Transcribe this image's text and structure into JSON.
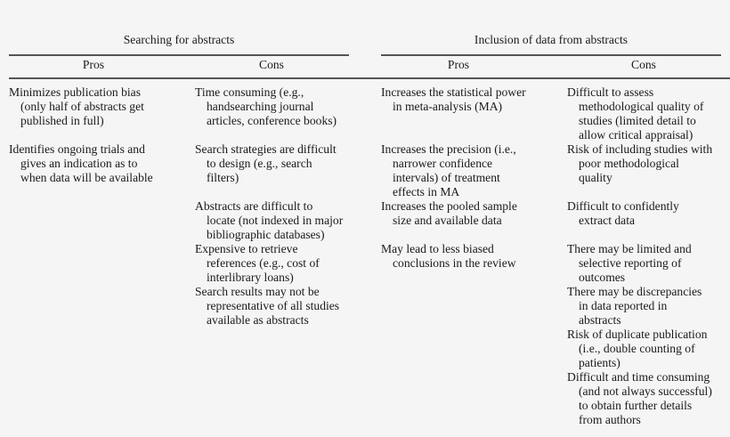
{
  "groups": [
    {
      "title": "Searching for abstracts",
      "columns": [
        {
          "label": "Pros",
          "items": [
            [
              "Minimizes publication bias",
              "(only half of abstracts get",
              "published in full)"
            ],
            [
              "Identifies ongoing trials and",
              "gives an indication as to",
              "when data will be available"
            ]
          ]
        },
        {
          "label": "Cons",
          "items": [
            [
              "Time consuming (e.g.,",
              "handsearching journal",
              "articles, conference books)"
            ],
            [
              "Search strategies are difficult",
              "to design (e.g., search",
              "filters)"
            ],
            [
              "Abstracts are difficult to",
              "locate (not indexed in major",
              "bibliographic databases)"
            ],
            [
              "Expensive to retrieve",
              "references (e.g., cost of",
              "interlibrary loans)"
            ],
            [
              "Search results may not be",
              "representative of all studies",
              "available as abstracts"
            ]
          ]
        }
      ]
    },
    {
      "title": "Inclusion of data from abstracts",
      "columns": [
        {
          "label": "Pros",
          "items": [
            [
              "Increases the statistical power",
              "in meta-analysis (MA)"
            ],
            [
              "Increases the precision (i.e.,",
              "narrower confidence",
              "intervals) of treatment",
              "effects in MA"
            ],
            [
              "Increases the pooled sample",
              "size and available data"
            ],
            [
              "May lead to less biased",
              "conclusions in the review"
            ]
          ]
        },
        {
          "label": "Cons",
          "items": [
            [
              "Difficult to assess",
              "methodological quality of",
              "studies (limited detail to",
              "allow critical appraisal)"
            ],
            [
              "Risk of including studies with",
              "poor methodological",
              "quality"
            ],
            [
              "Difficult to confidently",
              "extract data"
            ],
            [
              "There may be limited and",
              "selective reporting of",
              "outcomes"
            ],
            [
              "There may be discrepancies",
              "in data reported in",
              "abstracts"
            ],
            [
              "Risk of duplicate publication",
              "(i.e., double counting of",
              "patients)"
            ],
            [
              "Difficult and time consuming",
              "(and not always successful)",
              "to obtain further details",
              "from authors"
            ]
          ]
        }
      ]
    }
  ]
}
